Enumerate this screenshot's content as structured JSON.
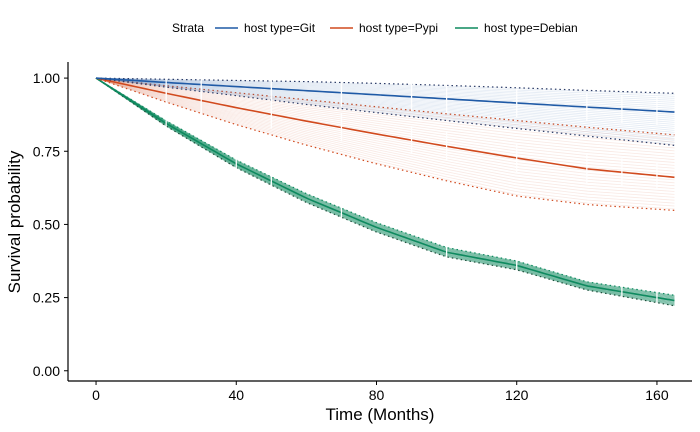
{
  "chart_data": {
    "type": "line",
    "title": "",
    "xlabel": "Time (Months)",
    "ylabel": "Survival probability",
    "xlim": [
      -8,
      170
    ],
    "ylim": [
      -0.035,
      1.055
    ],
    "x_ticks": [
      0,
      40,
      80,
      120,
      160
    ],
    "x_tick_labels": [
      "0",
      "40",
      "80",
      "120",
      "160"
    ],
    "y_ticks": [
      0,
      0.25,
      0.5,
      0.75,
      1.0
    ],
    "y_tick_labels": [
      "0.00",
      "0.25",
      "0.50",
      "0.75",
      "1.00"
    ],
    "grid": false,
    "legend": {
      "title": "Strata",
      "placement": "top-center",
      "entries": [
        "host type=Git",
        "host type=Pypi",
        "host type=Debian"
      ]
    },
    "x": [
      0,
      20,
      40,
      60,
      80,
      100,
      120,
      140,
      165
    ],
    "series": [
      {
        "name": "host type=Git",
        "color": "#1f5aa6",
        "values": [
          1.0,
          0.985,
          0.971,
          0.957,
          0.943,
          0.929,
          0.915,
          0.901,
          0.884
        ],
        "ci_lower": [
          1.0,
          0.969,
          0.94,
          0.91,
          0.882,
          0.855,
          0.828,
          0.802,
          0.77
        ],
        "ci_upper": [
          1.0,
          0.996,
          0.992,
          0.988,
          0.982,
          0.975,
          0.967,
          0.958,
          0.948
        ]
      },
      {
        "name": "host type=Pypi",
        "color": "#d14a1e",
        "values": [
          1.0,
          0.948,
          0.899,
          0.853,
          0.809,
          0.767,
          0.727,
          0.69,
          0.661
        ],
        "ci_lower": [
          1.0,
          0.918,
          0.841,
          0.771,
          0.707,
          0.649,
          0.597,
          0.568,
          0.548
        ],
        "ci_upper": [
          1.0,
          0.974,
          0.95,
          0.926,
          0.902,
          0.878,
          0.855,
          0.832,
          0.806
        ]
      },
      {
        "name": "host type=Debian",
        "color": "#0e8a5f",
        "values": [
          1.0,
          0.845,
          0.707,
          0.59,
          0.49,
          0.405,
          0.36,
          0.29,
          0.24
        ],
        "ci_lower": [
          1.0,
          0.836,
          0.694,
          0.575,
          0.474,
          0.389,
          0.345,
          0.276,
          0.222
        ],
        "ci_upper": [
          1.0,
          0.854,
          0.72,
          0.605,
          0.506,
          0.421,
          0.375,
          0.304,
          0.258
        ]
      }
    ]
  }
}
